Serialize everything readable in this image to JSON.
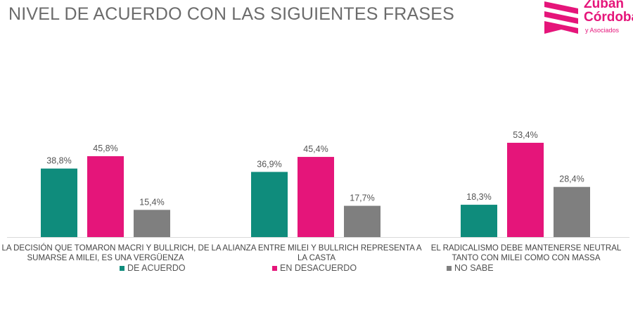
{
  "title": "NIVEL DE ACUERDO CON LAS SIGUIENTES FRASES",
  "logo": {
    "line1": "Zuban",
    "line2": "Córdoba",
    "line3": "y Asociados"
  },
  "chart_data": {
    "type": "bar",
    "categories": [
      "LA DECISIÓN QUE TOMARON MACRI Y BULLRICH, DE SUMARSE A MILEI, ES UNA VERGÜENZA",
      "LA ALIANZA ENTRE MILEI Y BULLRICH REPRESENTA A LA CASTA",
      "EL RADICALISMO DEBE MANTENERSE NEUTRAL TANTO CON MILEI COMO CON MASSA"
    ],
    "series": [
      {
        "name": "DE ACUERDO",
        "color": "#0f8c7c",
        "values": [
          38.8,
          36.9,
          18.3
        ],
        "labels": [
          "38,8%",
          "36,9%",
          "18,3%"
        ]
      },
      {
        "name": "EN DESACUERDO",
        "color": "#e5157a",
        "values": [
          45.8,
          45.4,
          53.4
        ],
        "labels": [
          "45,8%",
          "45,4%",
          "53,4%"
        ]
      },
      {
        "name": "NO SABE",
        "color": "#7f7f7f",
        "values": [
          15.4,
          17.7,
          28.4
        ],
        "labels": [
          "15,4%",
          "17,7%",
          "28,4%"
        ]
      }
    ],
    "legend": "bottom",
    "grid": false,
    "unit": "%"
  }
}
